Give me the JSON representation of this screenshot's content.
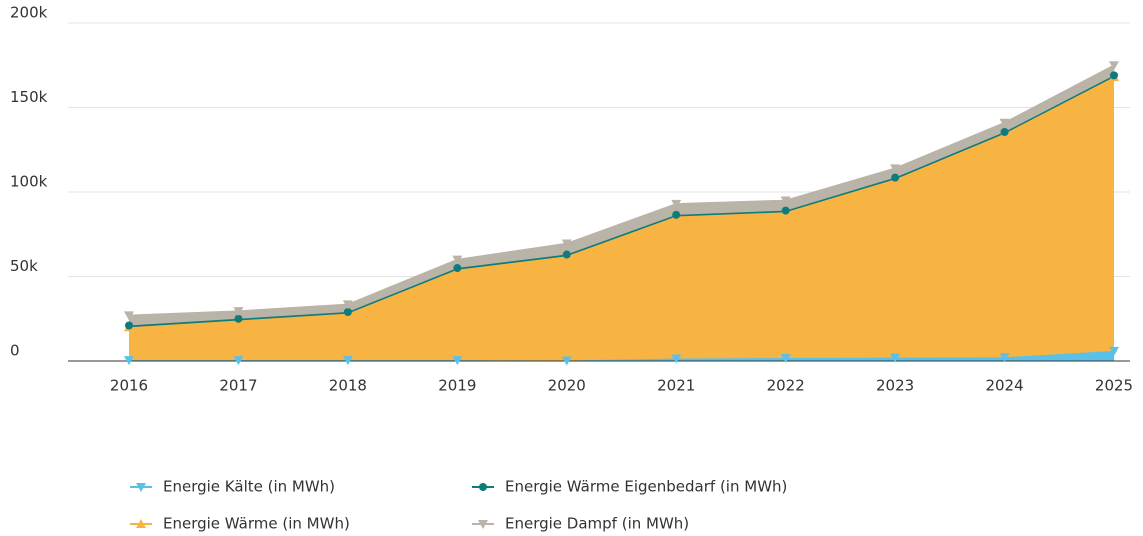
{
  "chart_data": {
    "type": "stacked_area",
    "categories": [
      "2016",
      "2017",
      "2018",
      "2019",
      "2020",
      "2021",
      "2022",
      "2023",
      "2024",
      "2025"
    ],
    "series": [
      {
        "name": "Energie Kälte (in MWh)",
        "color": "#5bc0e8",
        "marker": "triangle-down",
        "values": [
          500,
          500,
          500,
          500,
          300,
          1500,
          1800,
          2000,
          2200,
          6000
        ]
      },
      {
        "name": "Energie Wärme (in MWh)",
        "color": "#f8b442",
        "marker": "triangle-up",
        "values": [
          19500,
          23500,
          27500,
          53500,
          61700,
          84000,
          86200,
          105500,
          132300,
          162000
        ]
      },
      {
        "name": "Energie Wärme Eigenbedarf (in MWh)",
        "color": "#0e7c7b",
        "marker": "circle",
        "values": [
          1000,
          1000,
          1000,
          1000,
          1000,
          1000,
          1000,
          1000,
          1000,
          1000
        ]
      },
      {
        "name": "Energie Dampf (in MWh)",
        "color": "#b9b3a8",
        "marker": "triangle-down",
        "values": [
          6000,
          4500,
          4500,
          5000,
          6500,
          6500,
          6000,
          5500,
          5500,
          6000
        ]
      }
    ],
    "ylim": [
      0,
      200000
    ],
    "yticks": [
      0,
      {
        "value": 50000,
        "label": "50k"
      },
      {
        "value": 100000,
        "label": "100k"
      },
      {
        "value": 150000,
        "label": "150k"
      },
      {
        "value": 200000,
        "label": "200k"
      }
    ],
    "grid": true
  }
}
